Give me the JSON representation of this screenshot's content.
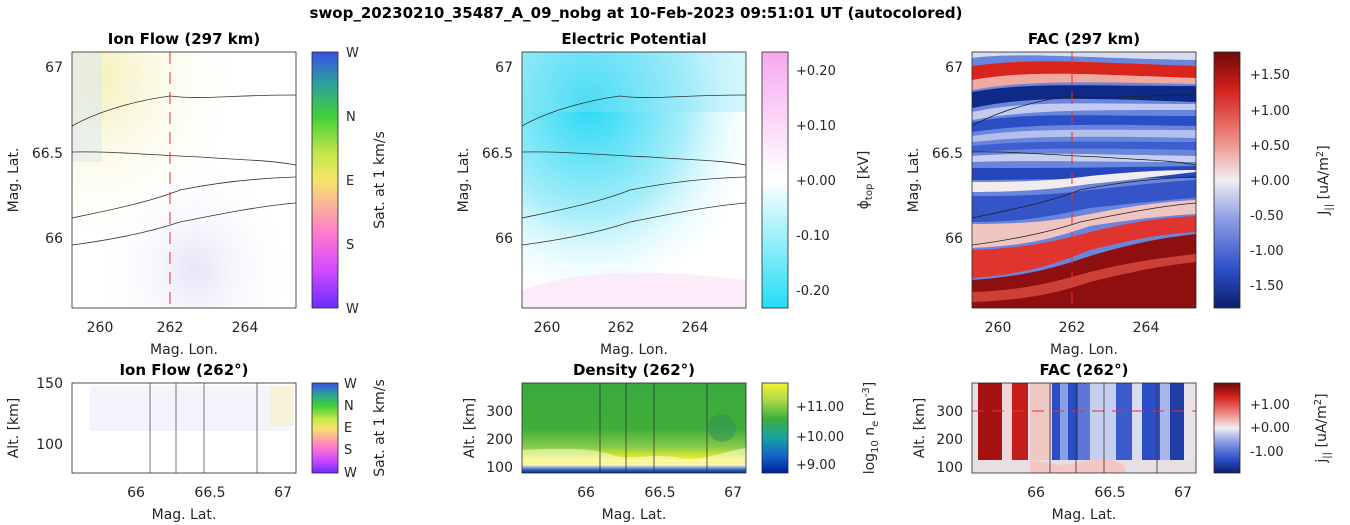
{
  "suptitle": "swop_20230210_35487_A_09_nobg at 10-Feb-2023 09:51:01 UT (autocolored)",
  "panels": {
    "p1": {
      "title": "Ion Flow (297 km)",
      "xlabel": "Mag. Lon.",
      "ylabel": "Mag. Lat.",
      "cblabel": "Sat. at 1 km/s",
      "xticks": [
        "260",
        "262",
        "264"
      ],
      "yticks": [
        "67",
        "66.5",
        "66"
      ],
      "cbticks": [
        "W",
        "N",
        "E",
        "S",
        "W"
      ]
    },
    "p2": {
      "title": "Electric Potential",
      "xlabel": "Mag. Lon.",
      "ylabel": "Mag. Lat.",
      "cblabel": "ϕ",
      "cblabel_sub": "top",
      "cblabel_unit": " [kV]",
      "xticks": [
        "260",
        "262",
        "264"
      ],
      "yticks": [
        "67",
        "66.5",
        "66"
      ],
      "cbticks": [
        "+0.20",
        "+0.10",
        "+0.00",
        "-0.10",
        "-0.20"
      ]
    },
    "p3": {
      "title": "FAC (297 km)",
      "xlabel": "Mag. Lon.",
      "ylabel": "Mag. Lat.",
      "cblabel": "J",
      "cblabel_sub": "||",
      "cblabel_unit": " [uA/m",
      "cblabel_sup": "2",
      "cblabel_end": "]",
      "xticks": [
        "260",
        "262",
        "264"
      ],
      "yticks": [
        "67",
        "66.5",
        "66"
      ],
      "cbticks": [
        "+1.50",
        "+1.00",
        "+0.50",
        "+0.00",
        "-0.50",
        "-1.00",
        "-1.50"
      ]
    },
    "p4": {
      "title": "Ion Flow (262°)",
      "xlabel": "Mag. Lat.",
      "ylabel": "Alt. [km]",
      "cblabel": "Sat. at 1 km/s",
      "xticks": [
        "66",
        "66.5",
        "67"
      ],
      "yticks": [
        "150",
        "100"
      ],
      "cbticks": [
        "W",
        "N",
        "E",
        "S",
        "W"
      ]
    },
    "p5": {
      "title": "Density (262°)",
      "xlabel": "Mag. Lat.",
      "ylabel": "Alt. [km]",
      "cblabel": "log",
      "cblabel_sub": "10",
      "cblabel_unit": " n",
      "cblabel_sub2": "e",
      "cblabel_unit2": " [m",
      "cblabel_sup": "-3",
      "cblabel_end": "]",
      "xticks": [
        "66",
        "66.5",
        "67"
      ],
      "yticks": [
        "300",
        "200",
        "100"
      ],
      "cbticks": [
        "+11.00",
        "+10.00",
        "+9.00"
      ]
    },
    "p6": {
      "title": "FAC (262°)",
      "xlabel": "Mag. Lat.",
      "ylabel": "Alt. [km]",
      "cblabel": "j",
      "cblabel_sub": "||",
      "cblabel_unit": " [uA/m",
      "cblabel_sup": "2",
      "cblabel_end": "]",
      "xticks": [
        "66",
        "66.5",
        "67"
      ],
      "yticks": [
        "300",
        "200",
        "100"
      ],
      "cbticks": [
        "+1.00",
        "+0.00",
        "-1.00"
      ]
    }
  },
  "colors": {
    "red_dash": "#e8302f",
    "contour": "#333333"
  },
  "chart_data": [
    {
      "type": "heatmap",
      "title": "Ion Flow (297 km)",
      "x_range": [
        259.4,
        265.4
      ],
      "y_range": [
        65.58,
        67.1
      ],
      "meridian_lon": 262,
      "contours_lat": [
        66.65,
        66.49,
        66.09,
        65.94
      ]
    },
    {
      "type": "heatmap",
      "title": "Electric Potential",
      "x_range": [
        259.4,
        265.4
      ],
      "y_range": [
        65.58,
        67.1
      ],
      "cb_range": [
        -0.23,
        0.23
      ]
    },
    {
      "type": "heatmap",
      "title": "FAC (297 km)",
      "x_range": [
        259.4,
        265.4
      ],
      "y_range": [
        65.58,
        67.1
      ],
      "cb_range": [
        -1.8,
        1.8
      ],
      "meridian_lon": 262
    },
    {
      "type": "heatmap",
      "title": "Ion Flow (262°)",
      "x_range": [
        65.57,
        67.1
      ],
      "y_range": [
        75,
        150
      ],
      "arc_lats": [
        66.1,
        66.27,
        66.46,
        66.81
      ]
    },
    {
      "type": "heatmap",
      "title": "Density (262°)",
      "x_range": [
        65.57,
        67.1
      ],
      "y_range": [
        85,
        390
      ],
      "cb_range": [
        8.7,
        11.6
      ],
      "arc_lats": [
        66.1,
        66.27,
        66.46,
        66.81
      ]
    },
    {
      "type": "heatmap",
      "title": "FAC (262°)",
      "x_range": [
        65.57,
        67.1
      ],
      "y_range": [
        85,
        390
      ],
      "cb_range": [
        -1.8,
        1.8
      ],
      "altitude_line_km": 300,
      "arc_lats": [
        66.1,
        66.27,
        66.46,
        66.81
      ]
    }
  ]
}
